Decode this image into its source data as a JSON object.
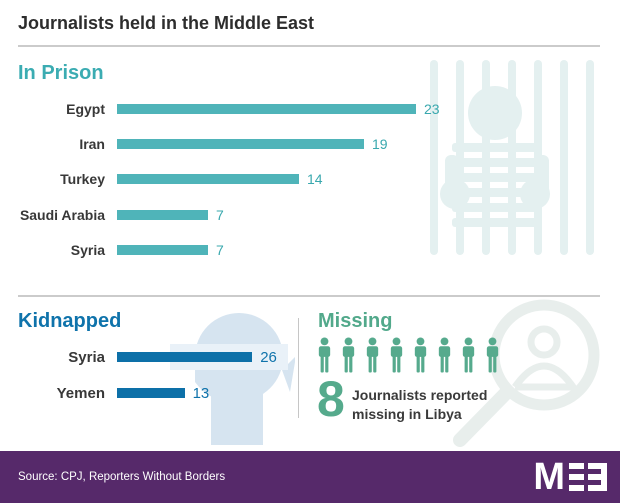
{
  "title": "Journalists held in the Middle East",
  "sections": {
    "in_prison": {
      "heading": "In Prison"
    },
    "kidnapped": {
      "heading": "Kidnapped"
    },
    "missing": {
      "heading": "Missing",
      "count": 8,
      "description_line1": "Journalists reported",
      "description_line2": "missing in Libya"
    }
  },
  "chart_data": [
    {
      "type": "bar",
      "title": "In Prison",
      "orientation": "horizontal",
      "categories": [
        "Egypt",
        "Iran",
        "Turkey",
        "Saudi Arabia",
        "Syria"
      ],
      "values": [
        23,
        19,
        14,
        7,
        7
      ],
      "bar_color": "#4fb4b9",
      "value_labels": true,
      "xlim": [
        0,
        25
      ],
      "grid": false,
      "legend": false
    },
    {
      "type": "bar",
      "title": "Kidnapped",
      "orientation": "horizontal",
      "categories": [
        "Syria",
        "Yemen"
      ],
      "values": [
        26,
        13
      ],
      "bar_color": "#0d70a8",
      "value_labels": true,
      "xlim": [
        0,
        28
      ],
      "grid": false,
      "legend": false
    },
    {
      "type": "pictogram",
      "title": "Missing",
      "count": 8,
      "value": 8,
      "label": "Journalists reported missing in Libya",
      "icon": "person-pictogram",
      "icon_color": "#56aa8d"
    }
  ],
  "footer": {
    "source": "Source: CPJ, Reporters Without Borders",
    "logo_text": "MEE",
    "logo_m": "M"
  },
  "icons": {
    "prison_watermark": "prisoner-behind-bars-icon",
    "kidnapped_watermark": "blindfolded-head-icon",
    "missing_watermark": "magnifying-glass-person-icon",
    "missing_unit": "person-icon"
  },
  "colors": {
    "teal": "#4fb4b9",
    "teal_heading": "#3bacb2",
    "blue": "#0d70a8",
    "blue_heading": "#0f73ab",
    "green": "#55aa8c",
    "text_dark": "#2d2d2d",
    "label_dark": "#383838",
    "divider": "#cbcbcb",
    "footer_purple": "#56296a",
    "watermark_teal": "#e4f0f0",
    "watermark_blue": "#d6e4f0",
    "watermark_band": "#e9f1f8",
    "watermark_green": "#e8eeec"
  }
}
